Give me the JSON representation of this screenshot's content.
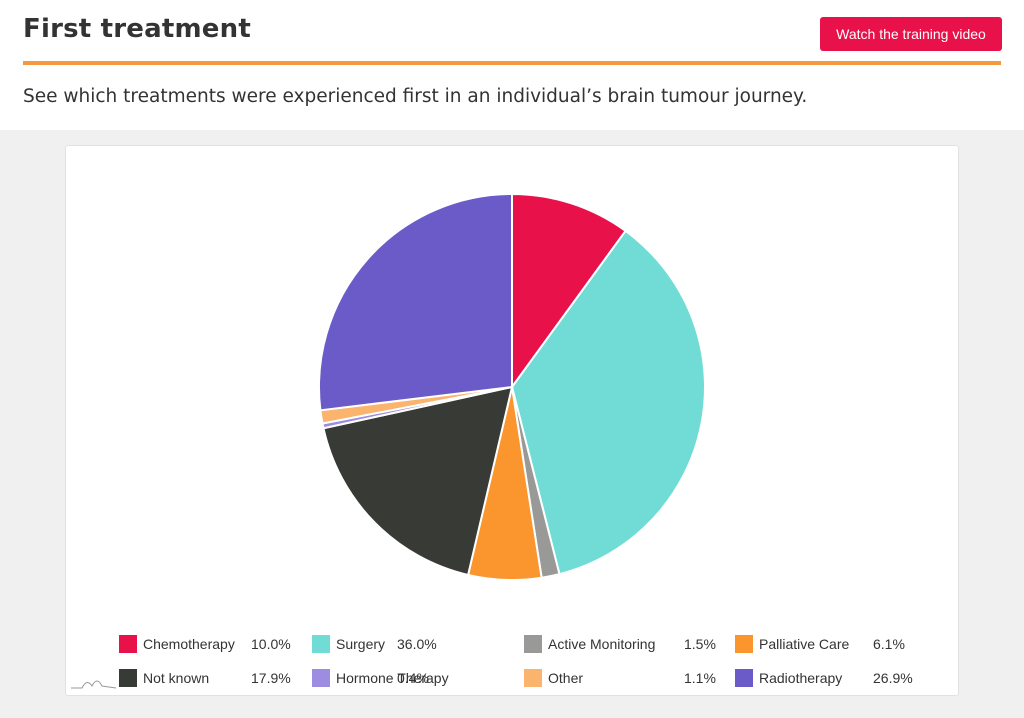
{
  "header": {
    "title": "First treatment",
    "video_button": "Watch the training video",
    "subtitle": "See which treatments were experienced first in an individual’s brain tumour journey."
  },
  "colors": {
    "accent_rule": "#f29a3d",
    "button": "#e8114a"
  },
  "chart_data": {
    "type": "pie",
    "slices": [
      {
        "label": "Chemotherapy",
        "value": 10.0,
        "display": "10.0%",
        "color": "#e8114a"
      },
      {
        "label": "Surgery",
        "value": 36.0,
        "display": "36.0%",
        "color": "#71dcd5"
      },
      {
        "label": "Active Monitoring",
        "value": 1.5,
        "display": "1.5%",
        "color": "#999a98"
      },
      {
        "label": "Palliative Care",
        "value": 6.1,
        "display": "6.1%",
        "color": "#fa962d"
      },
      {
        "label": "Not known",
        "value": 17.9,
        "display": "17.9%",
        "color": "#383a36"
      },
      {
        "label": "Hormone Therapy",
        "value": 0.4,
        "display": "0.4%",
        "color": "#9d8de0"
      },
      {
        "label": "Other",
        "value": 1.1,
        "display": "1.1%",
        "color": "#fbb46d"
      },
      {
        "label": "Radiotherapy",
        "value": 26.9,
        "display": "26.9%",
        "color": "#6a5bc8"
      }
    ],
    "legend_position": "bottom",
    "start_angle": "top, clockwise"
  }
}
